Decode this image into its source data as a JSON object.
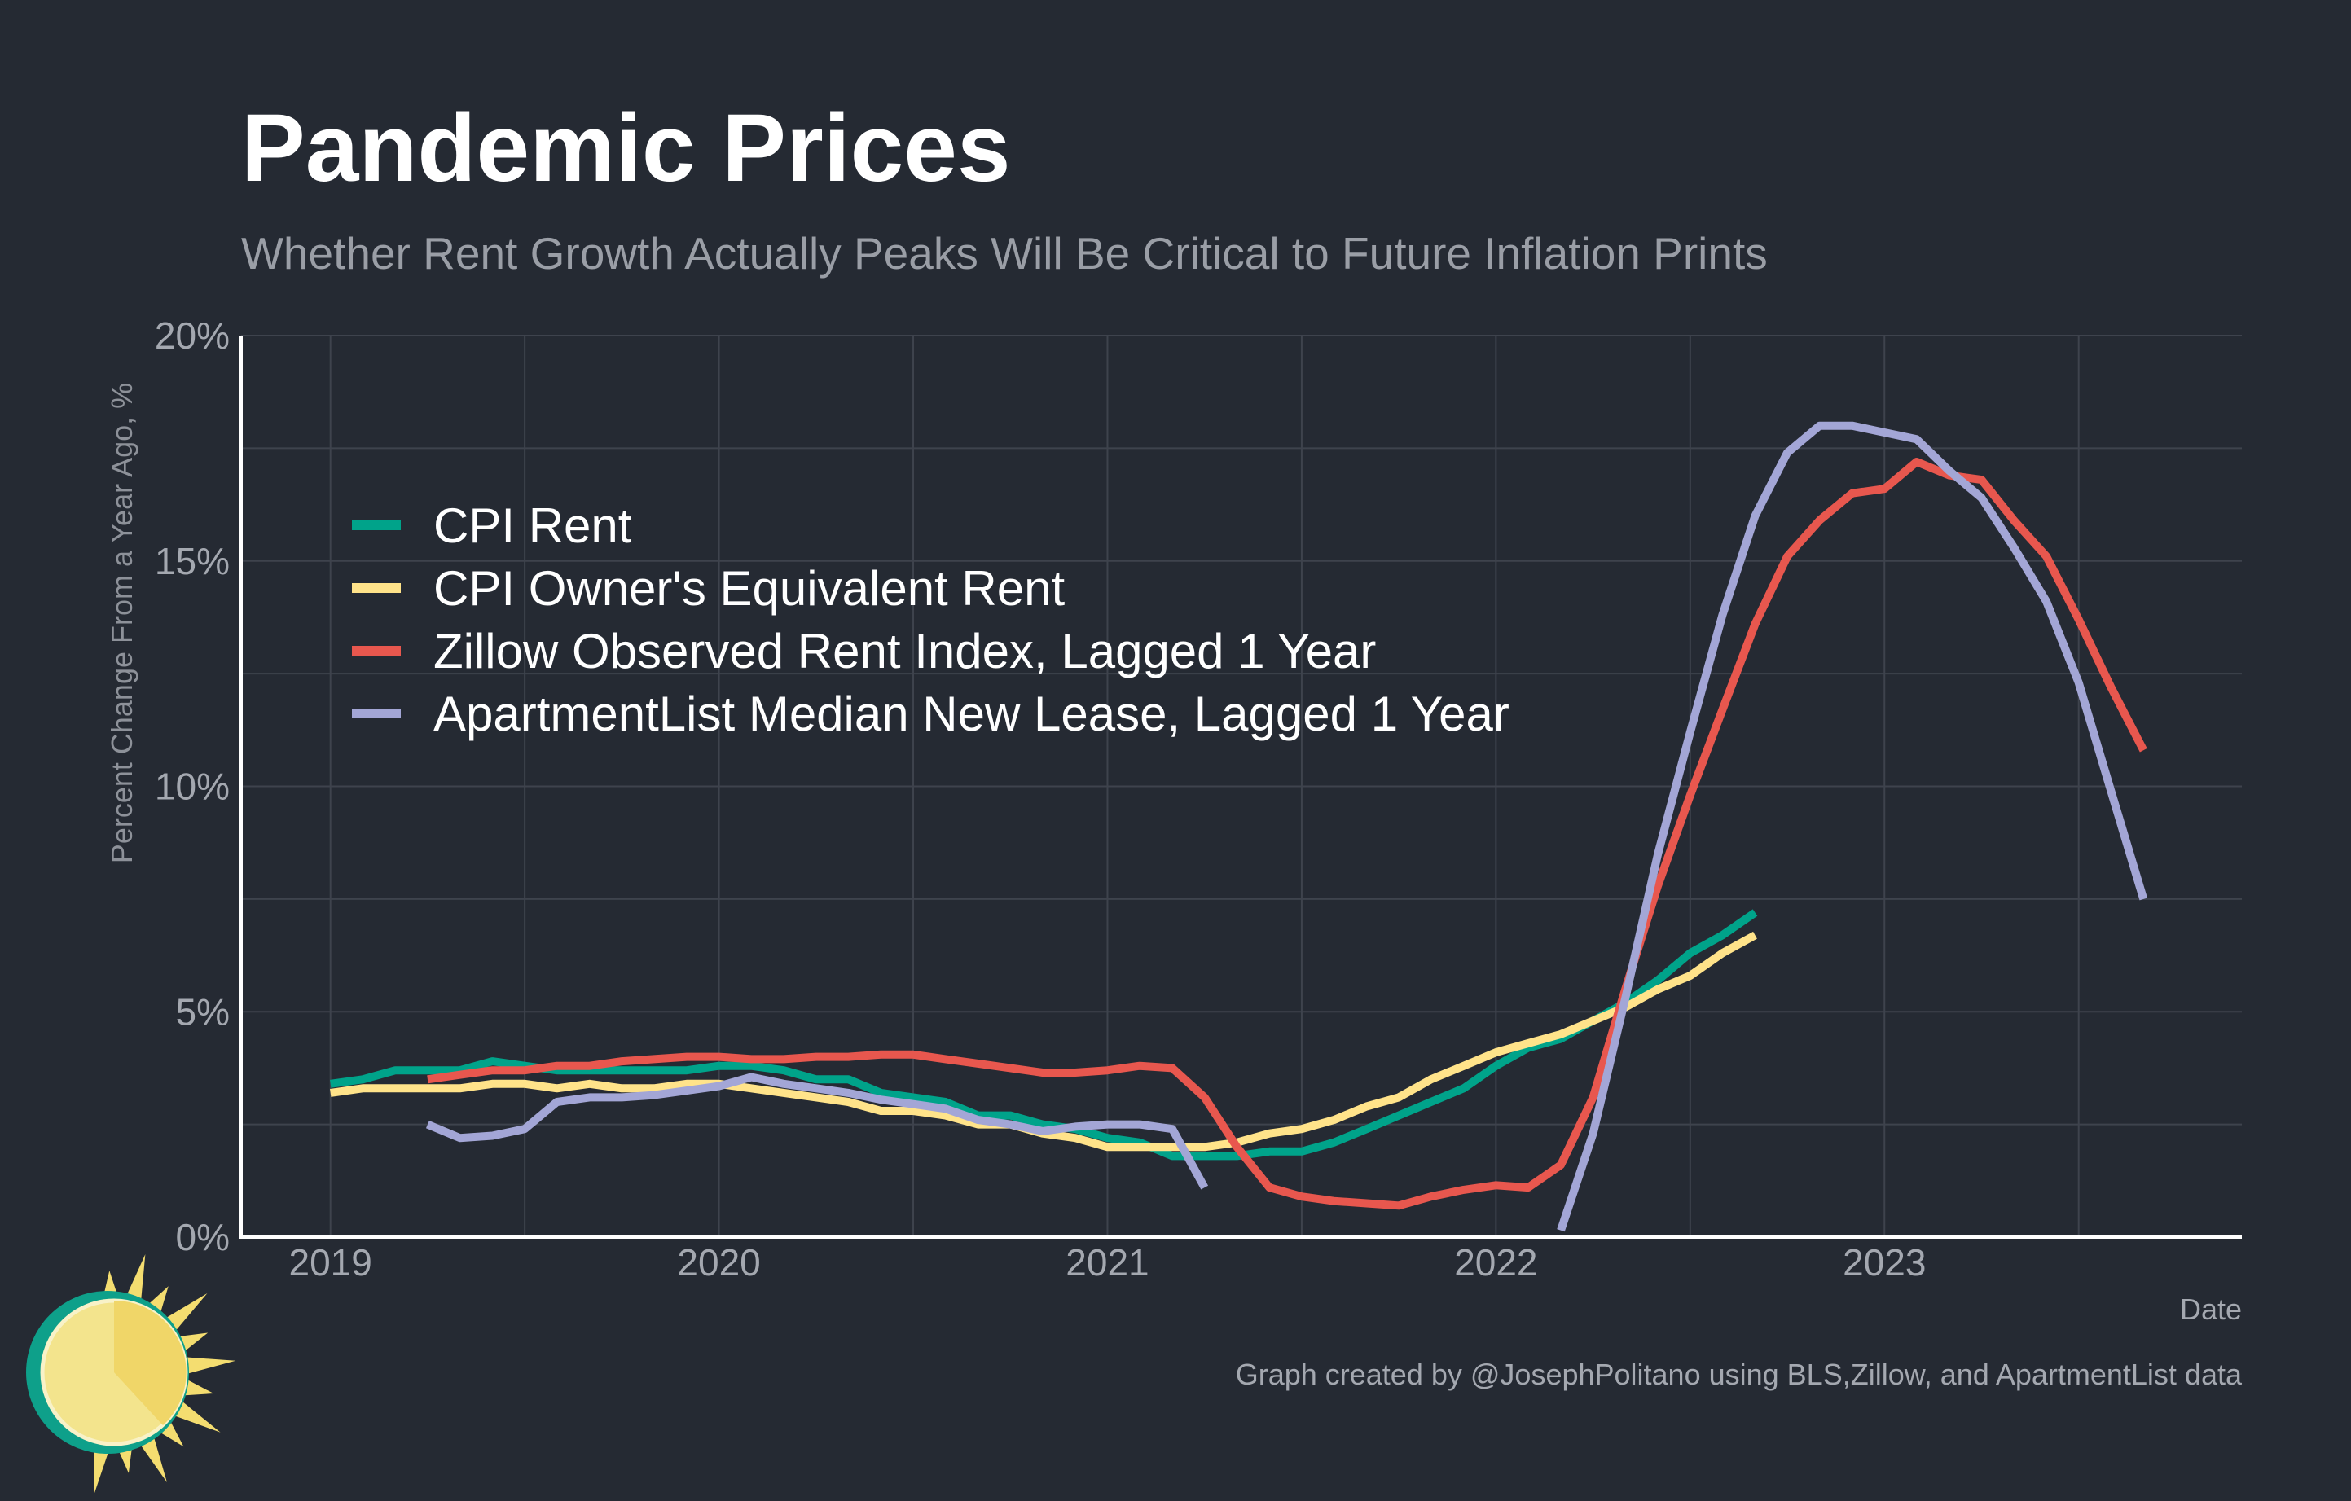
{
  "colors": {
    "background": "#252a33",
    "cpi_rent": "#00a38a",
    "cpi_oer": "#ffe38a",
    "zillow": "#e8574e",
    "apartmentlist": "#a3a6d6",
    "grid": "#3e434d",
    "axis": "#ffffff"
  },
  "chart_data": {
    "type": "line",
    "title": "Pandemic Prices",
    "subtitle": "Whether Rent Growth Actually Peaks Will Be Critical to Future Inflation Prints",
    "xlabel": "Date",
    "ylabel": "Percent Change From a Year Ago, %",
    "caption": "Graph created by @JosephPolitano using BLS,Zillow, and ApartmentList data",
    "xlim": [
      2018.77,
      2023.92
    ],
    "ylim": [
      0,
      20
    ],
    "x_ticks": [
      2019,
      2020,
      2021,
      2022,
      2023
    ],
    "x_tick_labels": [
      "2019",
      "2020",
      "2021",
      "2022",
      "2023"
    ],
    "y_ticks": [
      0,
      5,
      10,
      15,
      20
    ],
    "y_tick_labels": [
      "0%",
      "5%",
      "10%",
      "15%",
      "20%"
    ],
    "y_minor_ticks": [
      2.5,
      7.5,
      12.5,
      17.5
    ],
    "grid": true,
    "legend_position": "top-left",
    "series": [
      {
        "name": "CPI Rent",
        "color_key": "cpi_rent",
        "x": [
          2019.0,
          2019.083,
          2019.167,
          2019.25,
          2019.333,
          2019.417,
          2019.5,
          2019.583,
          2019.667,
          2019.75,
          2019.833,
          2019.917,
          2020.0,
          2020.083,
          2020.167,
          2020.25,
          2020.333,
          2020.417,
          2020.5,
          2020.583,
          2020.667,
          2020.75,
          2020.833,
          2020.917,
          2021.0,
          2021.083,
          2021.167,
          2021.25,
          2021.333,
          2021.417,
          2021.5,
          2021.583,
          2021.667,
          2021.75,
          2021.833,
          2021.917,
          2022.0,
          2022.083,
          2022.167,
          2022.25,
          2022.333,
          2022.417,
          2022.5,
          2022.583,
          2022.667
        ],
        "values": [
          3.4,
          3.5,
          3.7,
          3.7,
          3.7,
          3.9,
          3.8,
          3.7,
          3.7,
          3.7,
          3.7,
          3.7,
          3.8,
          3.8,
          3.7,
          3.5,
          3.5,
          3.2,
          3.1,
          3.0,
          2.7,
          2.7,
          2.5,
          2.4,
          2.2,
          2.1,
          1.8,
          1.8,
          1.8,
          1.9,
          1.9,
          2.1,
          2.4,
          2.7,
          3.0,
          3.3,
          3.8,
          4.2,
          4.4,
          4.8,
          5.2,
          5.7,
          6.3,
          6.7,
          7.2
        ]
      },
      {
        "name": "CPI Owner's Equivalent Rent",
        "color_key": "cpi_oer",
        "x": [
          2019.0,
          2019.083,
          2019.167,
          2019.25,
          2019.333,
          2019.417,
          2019.5,
          2019.583,
          2019.667,
          2019.75,
          2019.833,
          2019.917,
          2020.0,
          2020.083,
          2020.167,
          2020.25,
          2020.333,
          2020.417,
          2020.5,
          2020.583,
          2020.667,
          2020.75,
          2020.833,
          2020.917,
          2021.0,
          2021.083,
          2021.167,
          2021.25,
          2021.333,
          2021.417,
          2021.5,
          2021.583,
          2021.667,
          2021.75,
          2021.833,
          2021.917,
          2022.0,
          2022.083,
          2022.167,
          2022.25,
          2022.333,
          2022.417,
          2022.5,
          2022.583,
          2022.667
        ],
        "values": [
          3.2,
          3.3,
          3.3,
          3.3,
          3.3,
          3.4,
          3.4,
          3.3,
          3.4,
          3.3,
          3.3,
          3.4,
          3.4,
          3.3,
          3.2,
          3.1,
          3.0,
          2.8,
          2.8,
          2.7,
          2.5,
          2.5,
          2.3,
          2.2,
          2.0,
          2.0,
          2.0,
          2.0,
          2.1,
          2.3,
          2.4,
          2.6,
          2.9,
          3.1,
          3.5,
          3.8,
          4.1,
          4.3,
          4.5,
          4.8,
          5.1,
          5.5,
          5.8,
          6.3,
          6.7
        ]
      },
      {
        "name": "Zillow Observed Rent Index, Lagged 1 Year",
        "color_key": "zillow",
        "x": [
          2019.25,
          2019.333,
          2019.417,
          2019.5,
          2019.583,
          2019.667,
          2019.75,
          2019.833,
          2019.917,
          2020.0,
          2020.083,
          2020.167,
          2020.25,
          2020.333,
          2020.417,
          2020.5,
          2020.583,
          2020.667,
          2020.75,
          2020.833,
          2020.917,
          2021.0,
          2021.083,
          2021.167,
          2021.25,
          2021.333,
          2021.417,
          2021.5,
          2021.583,
          2021.667,
          2021.75,
          2021.833,
          2021.917,
          2022.0,
          2022.083,
          2022.167,
          2022.25,
          2022.333,
          2022.417,
          2022.5,
          2022.583,
          2022.667,
          2022.75,
          2022.833,
          2022.917,
          2023.0,
          2023.083,
          2023.167,
          2023.25,
          2023.333,
          2023.417,
          2023.5,
          2023.583,
          2023.667
        ],
        "values": [
          3.5,
          3.6,
          3.7,
          3.7,
          3.8,
          3.8,
          3.9,
          3.95,
          4.0,
          4.0,
          3.95,
          3.95,
          4.0,
          4.0,
          4.05,
          4.05,
          3.95,
          3.85,
          3.75,
          3.65,
          3.65,
          3.7,
          3.8,
          3.75,
          3.1,
          2.0,
          1.1,
          0.9,
          0.8,
          0.75,
          0.7,
          0.9,
          1.05,
          1.15,
          1.1,
          1.6,
          3.1,
          5.5,
          7.8,
          9.8,
          11.7,
          13.6,
          15.1,
          15.9,
          16.5,
          16.6,
          17.2,
          16.9,
          16.8,
          15.9,
          15.1,
          13.7,
          12.2,
          10.8
        ]
      },
      {
        "name": "ApartmentList Median New Lease, Lagged 1 Year",
        "color_key": "apartmentlist",
        "x": [
          2019.25,
          2019.333,
          2019.417,
          2019.5,
          2019.583,
          2019.667,
          2019.75,
          2019.833,
          2019.917,
          2020.0,
          2020.083,
          2020.167,
          2020.25,
          2020.333,
          2020.417,
          2020.5,
          2020.583,
          2020.667,
          2020.75,
          2020.833,
          2020.917,
          2021.0,
          2021.083,
          2021.167,
          2021.25,
          null,
          2022.167,
          2022.25,
          2022.333,
          2022.417,
          2022.5,
          2022.583,
          2022.667,
          2022.75,
          2022.833,
          2022.917,
          2023.0,
          2023.083,
          2023.167,
          2023.25,
          2023.333,
          2023.417,
          2023.5,
          2023.583,
          2023.667
        ],
        "values": [
          2.5,
          2.2,
          2.25,
          2.4,
          3.0,
          3.1,
          3.1,
          3.15,
          3.25,
          3.35,
          3.55,
          3.4,
          3.3,
          3.2,
          3.05,
          2.95,
          2.85,
          2.6,
          2.5,
          2.35,
          2.45,
          2.5,
          2.5,
          2.4,
          1.1,
          null,
          0.15,
          2.3,
          5.3,
          8.5,
          11.2,
          13.8,
          16.0,
          17.4,
          18.0,
          18.0,
          17.85,
          17.7,
          17.0,
          16.4,
          15.3,
          14.1,
          12.3,
          9.9,
          7.5
        ]
      }
    ]
  }
}
